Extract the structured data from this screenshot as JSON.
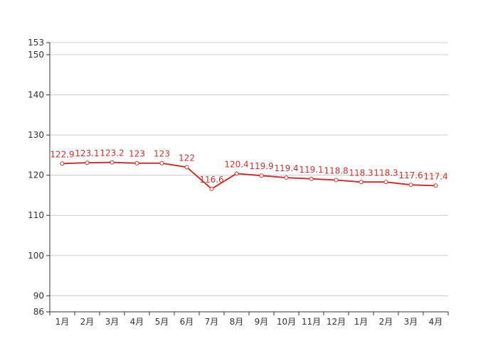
{
  "chart_data": {
    "type": "line",
    "categories": [
      "1月",
      "2月",
      "3月",
      "4月",
      "5月",
      "6月",
      "7月",
      "8月",
      "9月",
      "10月",
      "11月",
      "12月",
      "1月",
      "2月",
      "3月",
      "4月"
    ],
    "series": [
      {
        "values": [
          122.9,
          123.1,
          123.2,
          123,
          123,
          122,
          116.6,
          120.4,
          119.9,
          119.4,
          119.1,
          118.8,
          118.3,
          118.3,
          117.6,
          117.4
        ]
      }
    ],
    "title": "",
    "xlabel": "",
    "ylabel": "",
    "ylim": [
      86,
      153
    ],
    "yticks": [
      86,
      90,
      100,
      110,
      120,
      130,
      140,
      150,
      153
    ],
    "grid": true,
    "data_labels": true,
    "colors": {
      "line": "#c23531",
      "label": "#c23531",
      "axis": "#333333",
      "grid": "#cccccc",
      "tick_text": "#333333"
    }
  }
}
